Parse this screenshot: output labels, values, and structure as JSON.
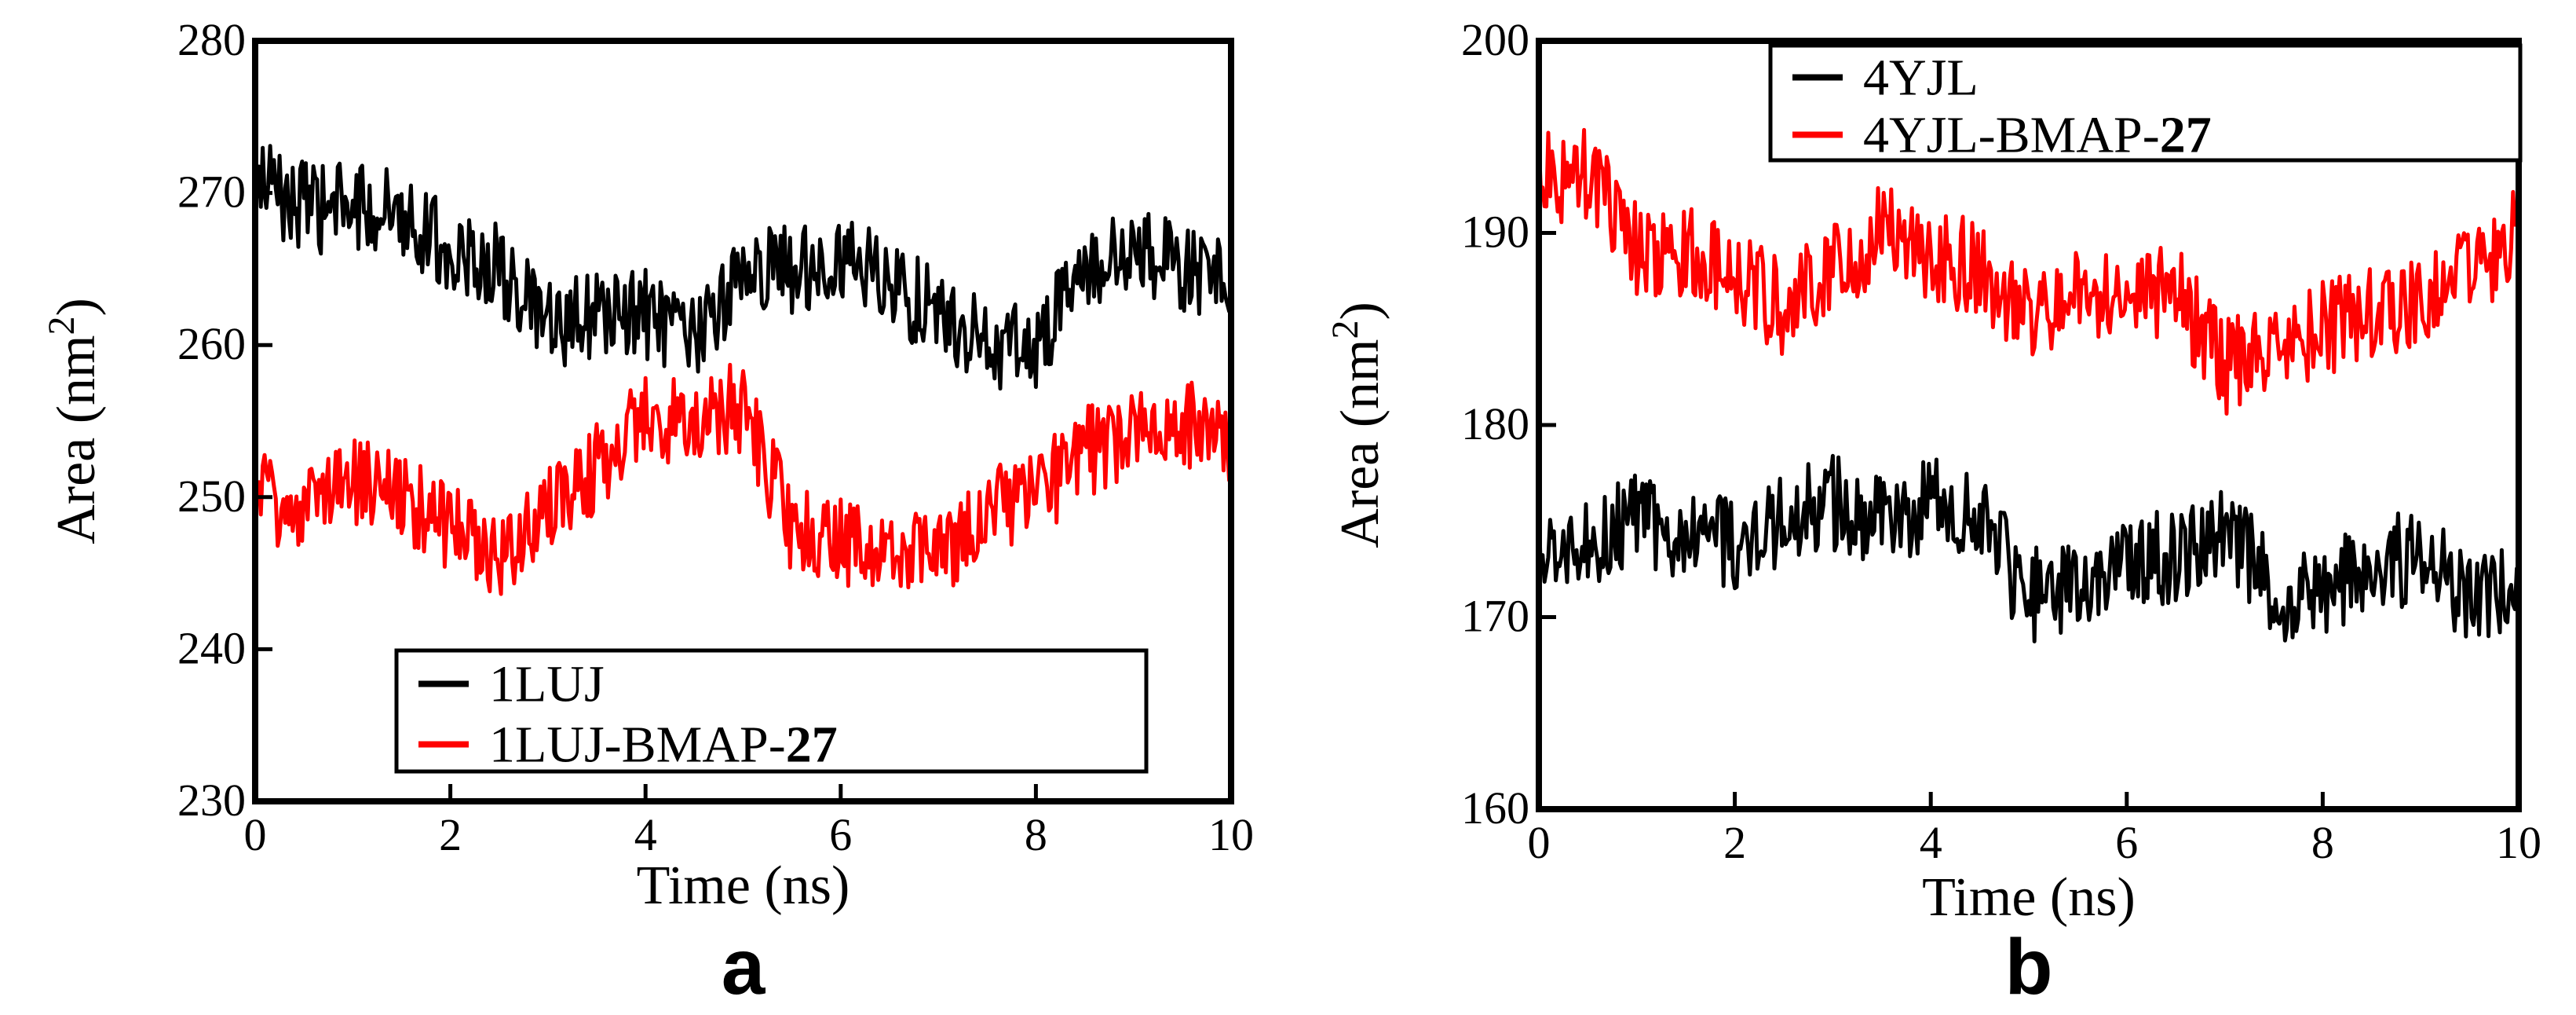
{
  "panels": [
    {
      "letter": "a"
    },
    {
      "letter": "b"
    }
  ],
  "chart_data": [
    {
      "type": "line",
      "title": "",
      "xlabel": "Time (ns)",
      "ylabel": "Area (nm",
      "ylabel_sup": "2",
      "ylabel_close": ")",
      "xlim": [
        0,
        10
      ],
      "ylim": [
        230,
        280
      ],
      "xticks": [
        "0",
        "2",
        "4",
        "6",
        "8",
        "10"
      ],
      "yticks": [
        "230",
        "240",
        "250",
        "260",
        "270",
        "280"
      ],
      "grid": false,
      "legend_position": "bottom-center",
      "series": [
        {
          "name": "1LUJ",
          "color": "#000000",
          "x": [
            0,
            0.5,
            1,
            1.5,
            2,
            2.5,
            3,
            3.5,
            4,
            4.5,
            5,
            5.5,
            6,
            6.5,
            7,
            7.5,
            8,
            8.5,
            9,
            9.5,
            10
          ],
          "y": [
            271,
            269,
            269,
            269,
            266,
            265,
            261,
            262,
            262,
            260,
            265,
            265,
            266,
            264,
            262,
            260,
            260,
            265,
            266,
            265,
            264
          ],
          "noise": 3
        },
        {
          "name": "1LUJ-BMAP-",
          "name_bold_suffix": "27",
          "color": "#ff0000",
          "x": [
            0,
            0.5,
            1,
            1.5,
            2,
            2.5,
            3,
            3.5,
            4,
            4.5,
            5,
            5.5,
            6,
            6.5,
            7,
            7.5,
            8,
            8.5,
            9,
            9.5,
            10
          ],
          "y": [
            250,
            249,
            251,
            250,
            248,
            246,
            249,
            252,
            255,
            255,
            256,
            248,
            247,
            247,
            246,
            249,
            250,
            253,
            254,
            255,
            253
          ],
          "noise": 3
        }
      ]
    },
    {
      "type": "line",
      "title": "",
      "xlabel": "Time (ns)",
      "ylabel": "Area (nm",
      "ylabel_sup": "2",
      "ylabel_close": ")",
      "xlim": [
        0,
        10
      ],
      "ylim": [
        160,
        200
      ],
      "xticks": [
        "0",
        "2",
        "4",
        "6",
        "8",
        "10"
      ],
      "yticks": [
        "160",
        "170",
        "180",
        "190",
        "200"
      ],
      "grid": false,
      "legend_position": "top-right",
      "series": [
        {
          "name": "4YJL",
          "color": "#000000",
          "x": [
            0,
            0.5,
            1,
            1.5,
            2,
            2.5,
            3,
            3.5,
            4,
            4.5,
            5,
            5.5,
            6,
            6.5,
            7,
            7.5,
            8,
            8.5,
            9,
            9.5,
            10
          ],
          "y": [
            174,
            174,
            175,
            174,
            174,
            175,
            176,
            175,
            176,
            175,
            171,
            172,
            173,
            173,
            175,
            171,
            171,
            173,
            173,
            171,
            171
          ],
          "noise": 2.5
        },
        {
          "name": "4YJL-BMAP-",
          "name_bold_suffix": "27",
          "color": "#ff0000",
          "x": [
            0,
            0.5,
            1,
            1.5,
            2,
            2.5,
            3,
            3.5,
            4,
            4.5,
            5,
            5.5,
            6,
            6.5,
            7,
            7.5,
            8,
            8.5,
            9,
            9.5,
            10
          ],
          "y": [
            193,
            193,
            189,
            189,
            188,
            186,
            188,
            190,
            189,
            188,
            186,
            187,
            187,
            187,
            183,
            184,
            185,
            186,
            186,
            188,
            190
          ],
          "noise": 2.5
        }
      ]
    }
  ]
}
